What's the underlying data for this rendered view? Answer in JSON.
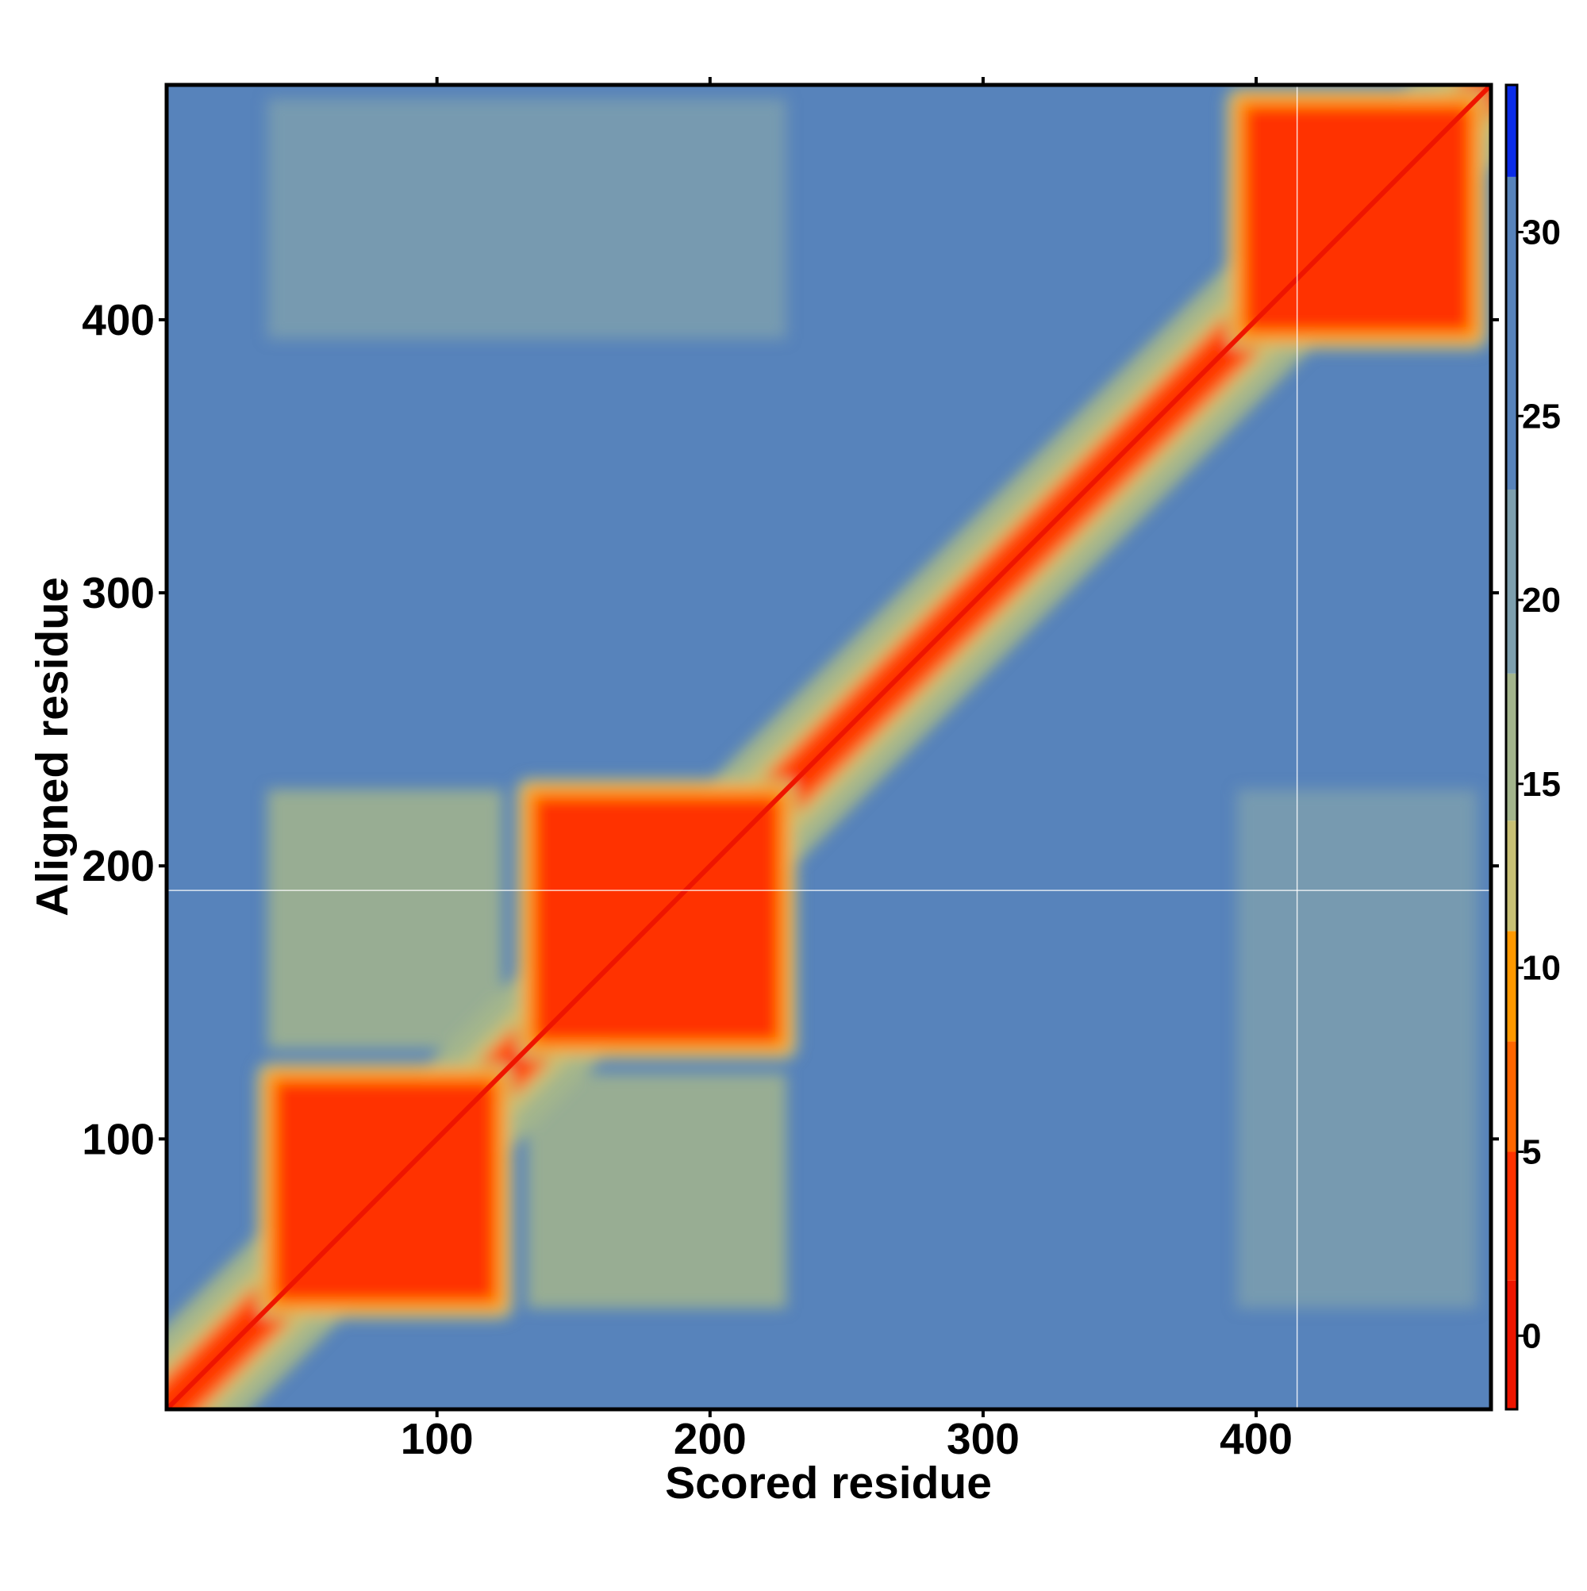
{
  "chart_data": {
    "type": "heatmap",
    "title": "",
    "xlabel": "Scored residue",
    "ylabel": "Aligned residue",
    "xlim": [
      1,
      486
    ],
    "ylim": [
      1,
      486
    ],
    "x_ticks": [
      "100",
      "200",
      "300",
      "400"
    ],
    "x_tick_values": [
      100,
      200,
      300,
      400
    ],
    "y_ticks": [
      "100",
      "200",
      "300",
      "400"
    ],
    "y_tick_values": [
      100,
      200,
      300,
      400
    ],
    "colorbar": {
      "range": [
        -2,
        34
      ],
      "ticks": [
        "0",
        "5",
        "10",
        "15",
        "20",
        "25",
        "30"
      ],
      "tick_values": [
        0,
        5,
        10,
        15,
        20,
        25,
        30
      ],
      "bands": [
        {
          "from": -2,
          "to": 1.5,
          "color": "#ee1500"
        },
        {
          "from": 1.5,
          "to": 5,
          "color": "#ff3300"
        },
        {
          "from": 5,
          "to": 8,
          "color": "#ff6600"
        },
        {
          "from": 8,
          "to": 11,
          "color": "#ff9900"
        },
        {
          "from": 11,
          "to": 14,
          "color": "#c8c074"
        },
        {
          "from": 14,
          "to": 18,
          "color": "#a3b58c"
        },
        {
          "from": 18,
          "to": 23,
          "color": "#7d9fae"
        },
        {
          "from": 23,
          "to": 31.5,
          "color": "#5783bb"
        },
        {
          "from": 31.5,
          "to": 34,
          "color": "#0a2ce8"
        }
      ]
    },
    "background_value": 27,
    "domains": [
      {
        "name": "d1",
        "start": 38,
        "end": 124
      },
      {
        "name": "d2",
        "start": 133,
        "end": 228
      },
      {
        "name": "d3",
        "start": 393,
        "end": 481
      }
    ],
    "domain_pairs": [
      {
        "x": [
          38,
          124
        ],
        "y": [
          133,
          228
        ],
        "value": 15
      },
      {
        "x": [
          133,
          228
        ],
        "y": [
          38,
          124
        ],
        "value": 15
      },
      {
        "x": [
          38,
          228
        ],
        "y": [
          393,
          481
        ],
        "value": 21
      },
      {
        "x": [
          393,
          481
        ],
        "y": [
          38,
          228
        ],
        "value": 22
      }
    ],
    "reference_lines": {
      "x": 415,
      "y": 191
    }
  }
}
